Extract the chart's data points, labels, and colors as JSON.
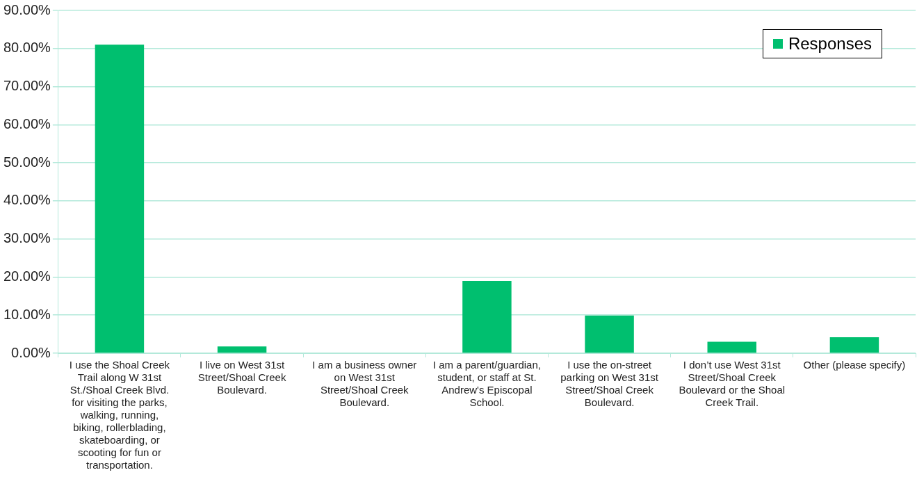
{
  "chart_data": {
    "type": "bar",
    "categories": [
      "I use the Shoal Creek Trail along W 31st St./Shoal Creek Blvd. for visiting the parks, walking, running, biking, rollerblading, skateboarding, or scooting for fun or transportation.",
      "I live on West 31st Street/Shoal Creek Boulevard.",
      "I am a business owner on West 31st Street/Shoal Creek Boulevard.",
      "I am a parent/guardian, student, or staff at St. Andrew's Episcopal School.",
      "I use the on-street parking on West 31st Street/Shoal Creek Boulevard.",
      "I don’t use West 31st Street/Shoal Creek Boulevard or the Shoal Creek Trail.",
      "Other (please specify)"
    ],
    "series": [
      {
        "name": "Responses",
        "color": "#00bf6f",
        "values": [
          81.0,
          1.8,
          0,
          19.0,
          9.9,
          3.0,
          4.2
        ]
      }
    ],
    "ylim": [
      0,
      90
    ],
    "yticks": [
      {
        "value": 0,
        "label": "0.00%"
      },
      {
        "value": 10,
        "label": "10.00%"
      },
      {
        "value": 20,
        "label": "20.00%"
      },
      {
        "value": 30,
        "label": "30.00%"
      },
      {
        "value": 40,
        "label": "40.00%"
      },
      {
        "value": 50,
        "label": "50.00%"
      },
      {
        "value": 60,
        "label": "60.00%"
      },
      {
        "value": 70,
        "label": "70.00%"
      },
      {
        "value": 80,
        "label": "80.00%"
      },
      {
        "value": 90,
        "label": "90.00%"
      }
    ],
    "grid": "y",
    "legend": "top right"
  }
}
